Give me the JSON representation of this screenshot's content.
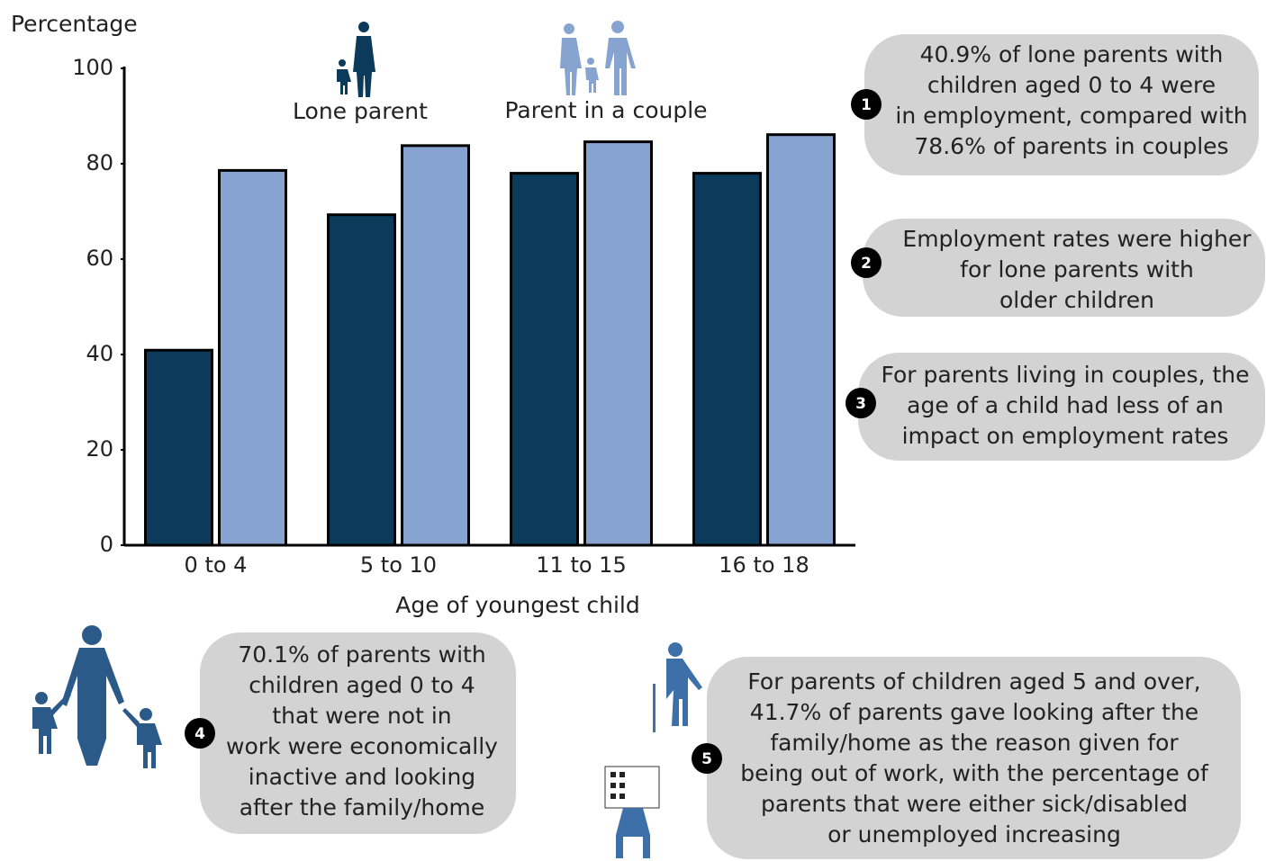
{
  "chart_data": {
    "type": "bar",
    "y_label": "Percentage",
    "x_label": "Age of youngest child",
    "categories": [
      "0 to 4",
      "5 to 10",
      "11 to 15",
      "16 to 18"
    ],
    "series": [
      {
        "name": "Lone parent",
        "color": "#0b3a5b",
        "values": [
          40.9,
          69.3,
          78.0,
          78.0
        ]
      },
      {
        "name": "Parent in a couple",
        "color": "#87a4d0",
        "values": [
          78.6,
          83.8,
          84.6,
          86.1
        ]
      }
    ],
    "ylim": [
      0,
      100
    ],
    "yticks": [
      0,
      20,
      40,
      60,
      80,
      100
    ],
    "grid": false
  },
  "annotations": [
    {
      "number": 1,
      "lines": [
        "40.9% of lone parents with",
        "children aged 0 to 4 were",
        "in employment, compared with",
        "78.6% of parents in couples"
      ]
    },
    {
      "number": 2,
      "lines": [
        "Employment rates were higher",
        "for lone parents with",
        "older children"
      ]
    },
    {
      "number": 3,
      "lines": [
        "For parents living in couples, the",
        "age of a child had less of an",
        "impact on employment rates"
      ]
    },
    {
      "number": 4,
      "lines": [
        "70.1% of parents with",
        "children aged 0 to 4",
        "that were not in",
        "work were economically",
        "inactive and looking",
        "after the family/home"
      ]
    },
    {
      "number": 5,
      "lines": [
        "For parents of children aged 5 and over,",
        "41.7% of parents gave looking after the",
        "family/home as the reason given for",
        "being out of work, with the percentage of",
        "parents that were  either sick/disabled",
        "or unemployed increasing"
      ]
    }
  ]
}
